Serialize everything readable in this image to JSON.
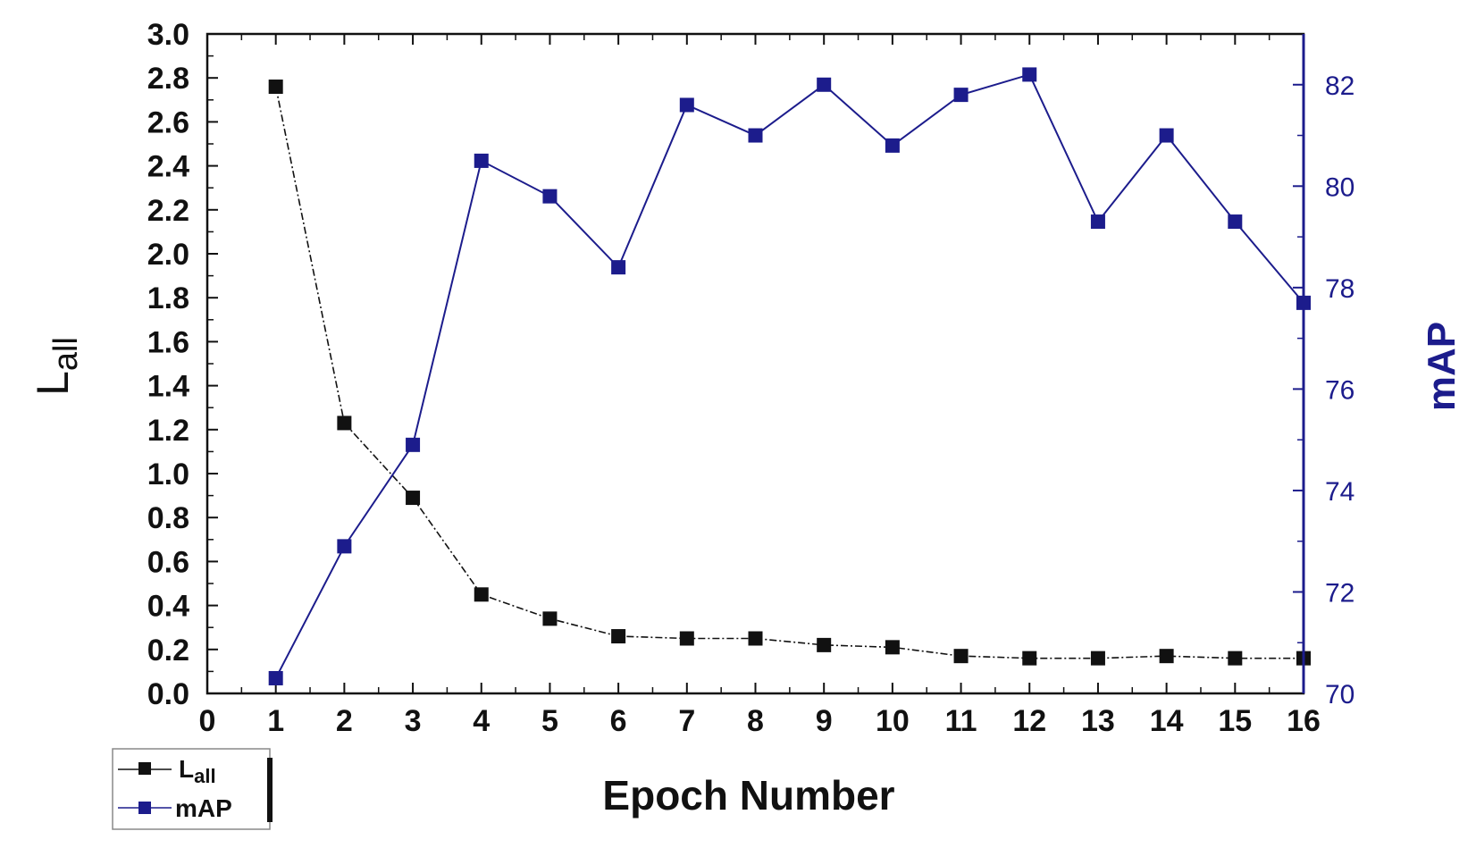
{
  "chart_data": {
    "type": "line",
    "xlabel": "Epoch Number",
    "x_ticks": [
      "0",
      "1",
      "2",
      "3",
      "4",
      "5",
      "6",
      "7",
      "8",
      "9",
      "10",
      "11",
      "12",
      "13",
      "14",
      "15",
      "16"
    ],
    "xlim": [
      0,
      16
    ],
    "y_left": {
      "label_main": "L",
      "label_sub": "all",
      "lim": [
        0,
        3.0
      ],
      "ticks": [
        "0.0",
        "0.2",
        "0.4",
        "0.6",
        "0.8",
        "1.0",
        "1.2",
        "1.4",
        "1.6",
        "1.8",
        "2.0",
        "2.2",
        "2.4",
        "2.6",
        "2.8",
        "3.0"
      ]
    },
    "y_right": {
      "label": "mAP",
      "lim": [
        70,
        83
      ],
      "ticks": [
        "70",
        "72",
        "74",
        "76",
        "78",
        "80",
        "82"
      ]
    },
    "series": [
      {
        "name_main": "L",
        "name_sub": "all",
        "axis": "left",
        "color": "#111111",
        "x": [
          1,
          2,
          3,
          4,
          5,
          6,
          7,
          8,
          9,
          10,
          11,
          12,
          13,
          14,
          15,
          16
        ],
        "values": [
          2.76,
          1.23,
          0.89,
          0.45,
          0.34,
          0.26,
          0.25,
          0.25,
          0.22,
          0.21,
          0.17,
          0.16,
          0.16,
          0.17,
          0.16,
          0.16
        ]
      },
      {
        "name": "mAP",
        "axis": "right",
        "color": "#1c1c8c",
        "x": [
          1,
          2,
          3,
          4,
          5,
          6,
          7,
          8,
          9,
          10,
          11,
          12,
          13,
          14,
          15,
          16
        ],
        "values": [
          70.3,
          72.9,
          74.9,
          80.5,
          79.8,
          78.4,
          81.6,
          81.0,
          82.0,
          80.8,
          81.8,
          82.2,
          79.3,
          81.0,
          79.3,
          77.7
        ]
      }
    ],
    "legend_position": "bottom-left"
  }
}
